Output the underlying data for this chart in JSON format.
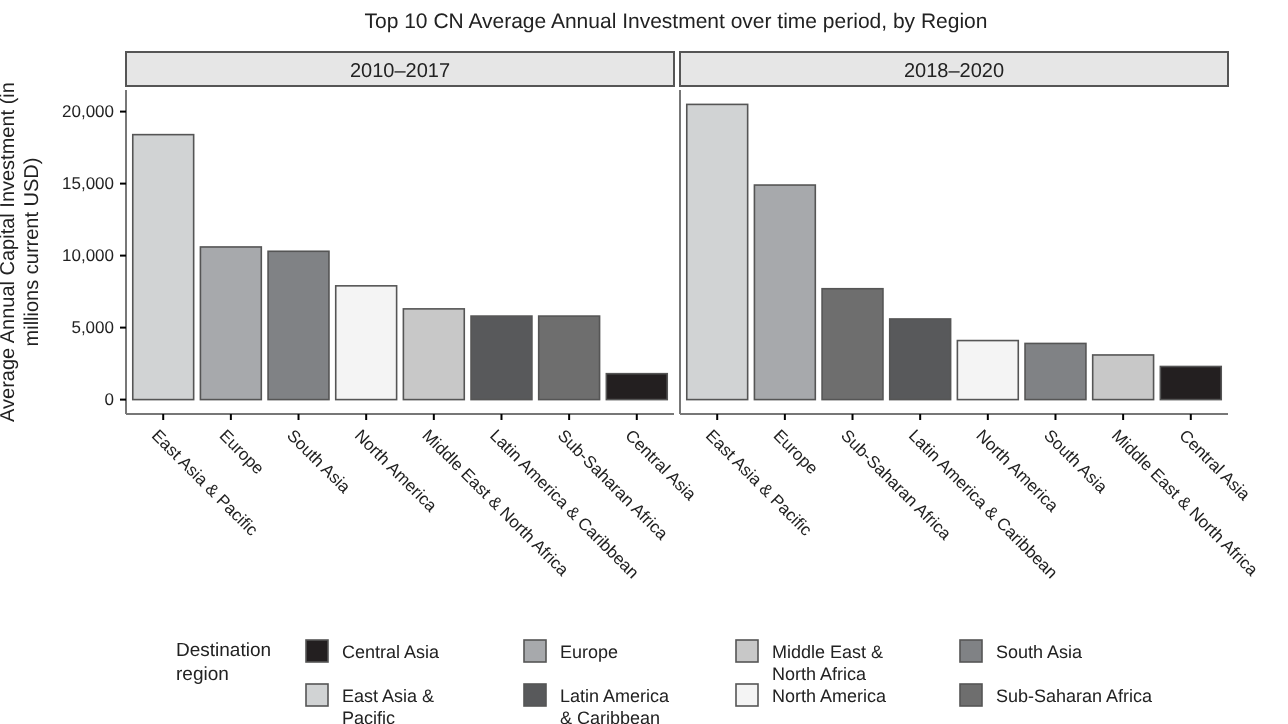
{
  "chart_data": [
    {
      "type": "bar",
      "title": "Top 10 CN Average Annual Investment over time period, by Region",
      "subtitle": "2010–2017",
      "ylabel": "Average Annual Capital Investment (in millions current USD)",
      "legend_title": "Destination region",
      "categories": [
        "East Asia & Pacific",
        "Europe",
        "South Asia",
        "North America",
        "Middle East & North Africa",
        "Latin America & Caribbean",
        "Sub-Saharan Africa",
        "Central Asia"
      ],
      "values": [
        18400,
        10600,
        10300,
        7900,
        6300,
        5800,
        5800,
        1800
      ],
      "colors": [
        "#d1d3d4",
        "#a7a9ac",
        "#808285",
        "#f4f4f4",
        "#c8c8c8",
        "#58595b",
        "#6e6e6e",
        "#231f20"
      ],
      "ylim": [
        -1000,
        21500
      ],
      "yticks": [
        0,
        {
          "value": 5000,
          "label": "5,000"
        },
        {
          "value": 10000,
          "label": "10,000"
        },
        {
          "value": 15000,
          "label": "15,000"
        },
        {
          "value": 20000,
          "label": "20,000"
        }
      ]
    },
    {
      "type": "bar",
      "subtitle": "2018–2020",
      "tick_labels": "x",
      "categories": [
        "East Asia & Pacific",
        "Europe",
        "Sub-Saharan Africa",
        "Latin America & Caribbean",
        "North America",
        "South Asia",
        "Middle East & North Africa",
        "Central Asia"
      ],
      "values": [
        20500,
        14900,
        7700,
        5600,
        4100,
        3900,
        3100,
        2300
      ],
      "colors": [
        "#d1d3d4",
        "#a7a9ac",
        "#6e6e6e",
        "#58595b",
        "#f4f4f4",
        "#808285",
        "#c8c8c8",
        "#231f20"
      ],
      "ylim": [
        -1000,
        21500
      ]
    }
  ]
}
